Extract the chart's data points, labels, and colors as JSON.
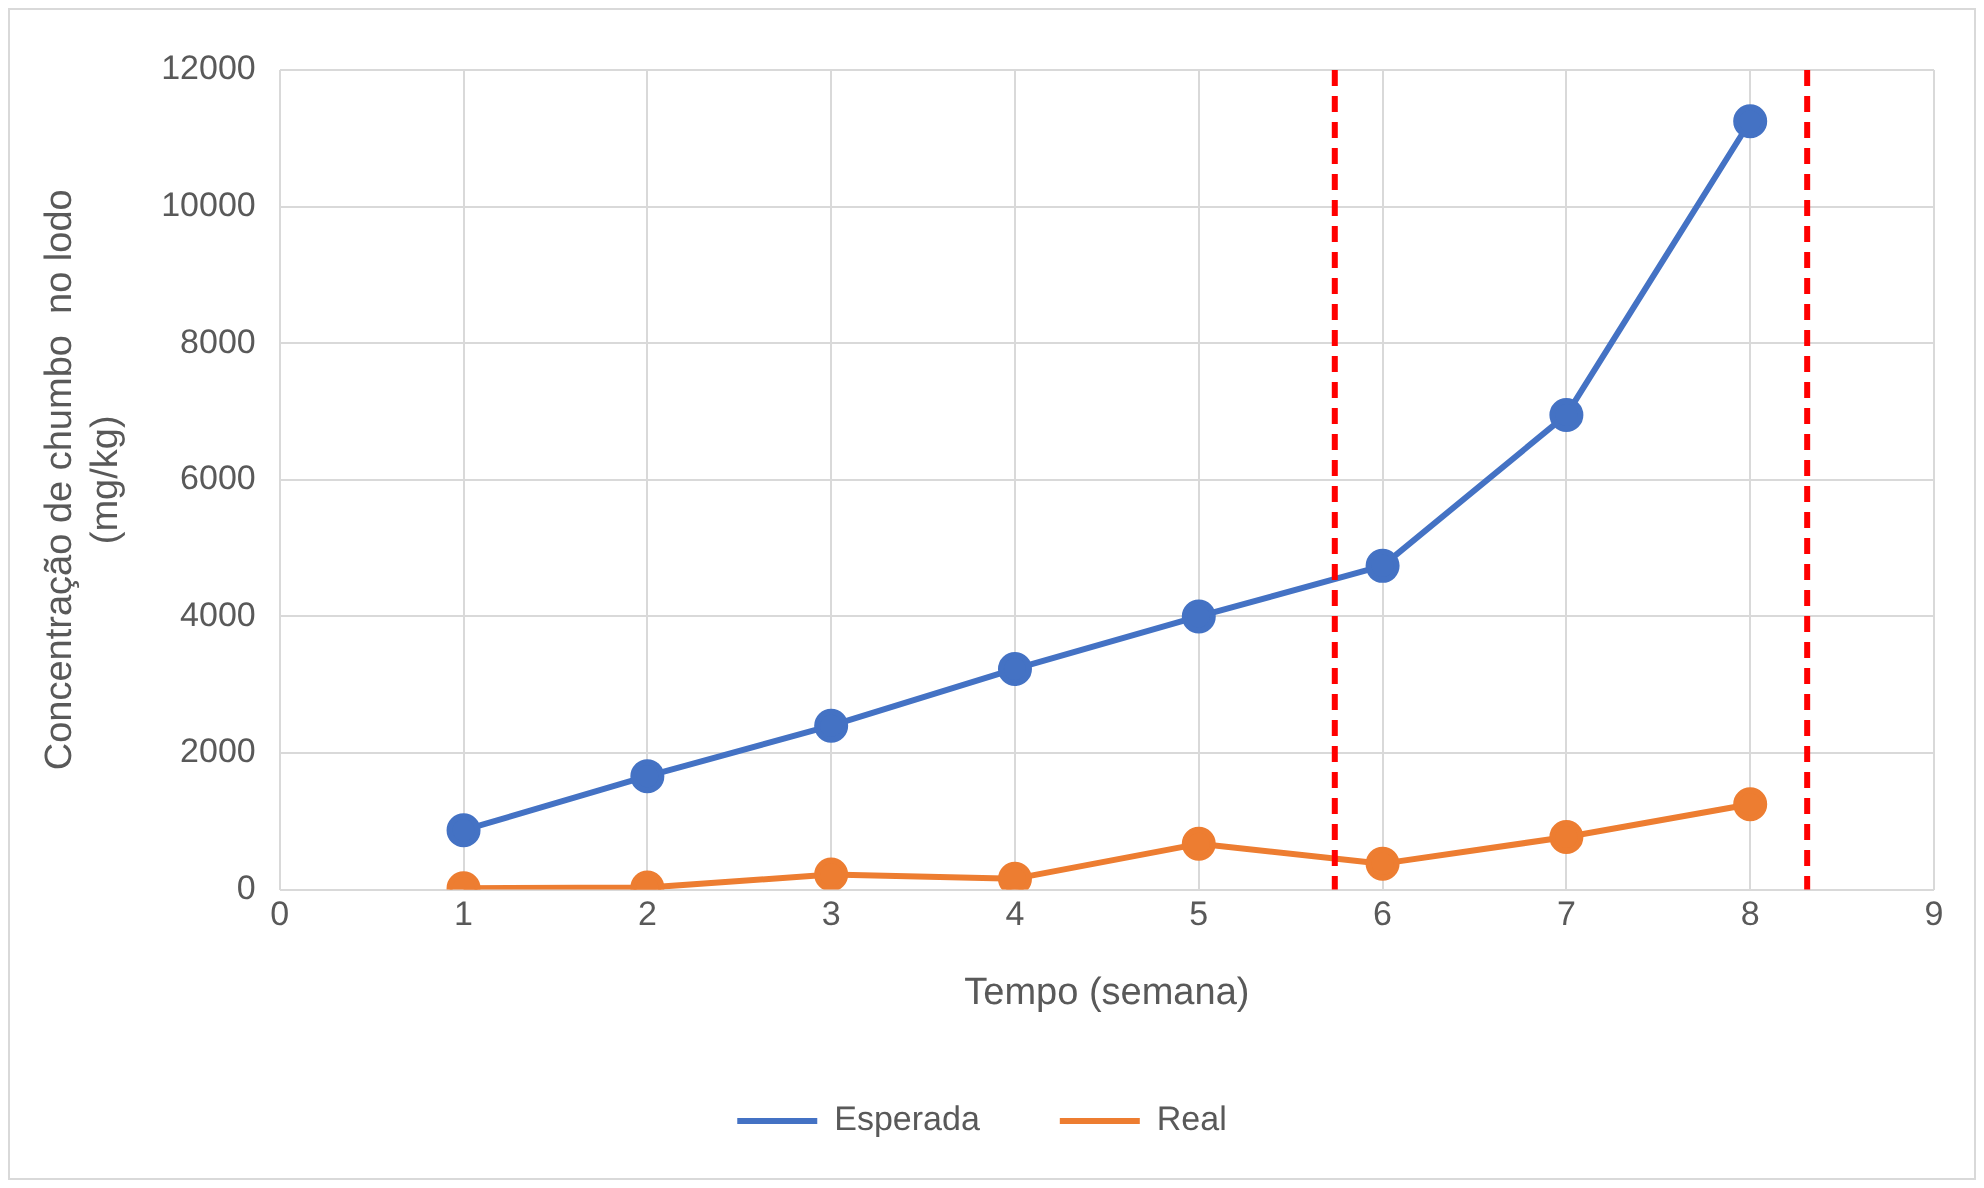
{
  "chart_data": {
    "type": "line",
    "xlabel": "Tempo (semana)",
    "ylabel": "Concentração de chumbo  no lodo\n(mg/kg)",
    "x": [
      1,
      2,
      3,
      4,
      5,
      6,
      7,
      8
    ],
    "series": [
      {
        "name": "Esperada",
        "color": "#4472c4",
        "values": [
          870,
          1660,
          2400,
          3230,
          4000,
          4740,
          6950,
          11250
        ]
      },
      {
        "name": "Real",
        "color": "#ed7d31",
        "values": [
          20,
          30,
          220,
          160,
          670,
          380,
          770,
          1250
        ]
      }
    ],
    "xlim": [
      0,
      9
    ],
    "xticks": [
      0,
      1,
      2,
      3,
      4,
      5,
      6,
      7,
      8,
      9
    ],
    "ylim": [
      0,
      12000
    ],
    "yticks": [
      0,
      2000,
      4000,
      6000,
      8000,
      10000,
      12000
    ],
    "ref_lines": [
      {
        "axis": "x",
        "value": 5.74,
        "color": "#ff0000",
        "line_style": "dashed"
      },
      {
        "axis": "x",
        "value": 8.31,
        "color": "#ff0000",
        "line_style": "dashed"
      }
    ],
    "grid": true,
    "legend": "bottom",
    "marker": "circle",
    "line_style": "solid"
  }
}
